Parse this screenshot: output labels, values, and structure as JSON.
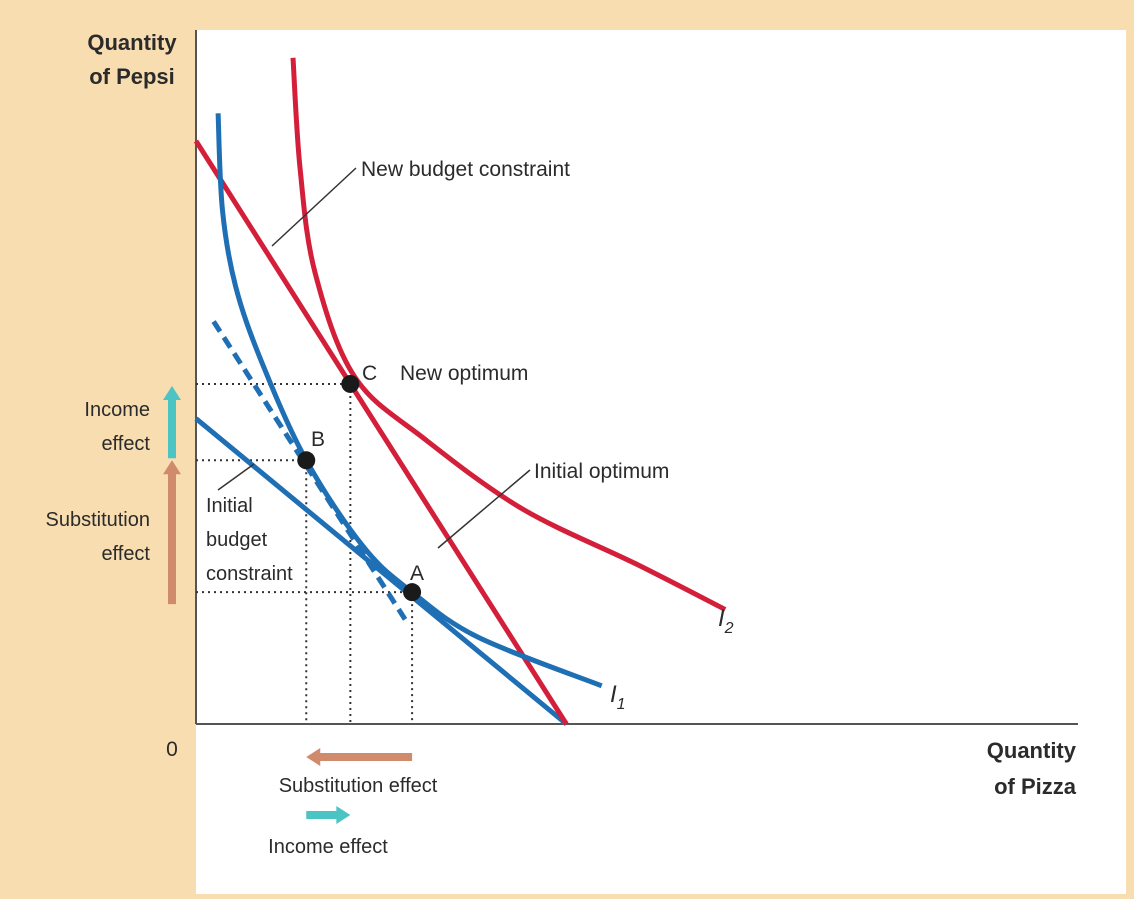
{
  "chart_data": {
    "type": "line",
    "ylabel_line1": "Quantity",
    "ylabel_line2": "of Pepsi",
    "xlabel_line1": "Quantity",
    "xlabel_line2": "of Pizza",
    "origin_label": "0",
    "xlim": [
      0,
      10
    ],
    "ylim": [
      0,
      10
    ],
    "series": [
      {
        "id": "initial_budget",
        "color": "#1f6fb5",
        "points": [
          [
            0,
            4.4
          ],
          [
            4.2,
            0
          ]
        ]
      },
      {
        "id": "new_budget",
        "color": "#d31f3a",
        "points": [
          [
            0,
            8.4
          ],
          [
            4.2,
            0
          ]
        ]
      },
      {
        "id": "compensated_budget",
        "color": "#1f6fb5",
        "dashed": true,
        "points": [
          [
            0.2,
            5.8
          ],
          [
            2.4,
            1.45
          ]
        ]
      },
      {
        "id": "I1",
        "name": "I",
        "subscript": "1",
        "color": "#1f6fb5",
        "points": [
          [
            0.25,
            8.8
          ],
          [
            0.3,
            7.4
          ],
          [
            0.45,
            6.3
          ],
          [
            0.75,
            5.2
          ],
          [
            1.25,
            3.8
          ],
          [
            1.9,
            2.55
          ],
          [
            2.45,
            1.9
          ],
          [
            3.2,
            1.25
          ],
          [
            4.6,
            0.55
          ]
        ]
      },
      {
        "id": "I2",
        "name": "I",
        "subscript": "2",
        "color": "#d31f3a",
        "points": [
          [
            1.1,
            9.6
          ],
          [
            1.18,
            8.0
          ],
          [
            1.35,
            6.5
          ],
          [
            1.8,
            5.0
          ],
          [
            2.6,
            4.1
          ],
          [
            3.7,
            3.1
          ],
          [
            5.0,
            2.3
          ],
          [
            6.0,
            1.65
          ]
        ]
      }
    ],
    "points": [
      {
        "id": "A",
        "label": "A",
        "x": 2.45,
        "y": 1.9
      },
      {
        "id": "B",
        "label": "B",
        "x": 1.25,
        "y": 3.8
      },
      {
        "id": "C",
        "label": "C",
        "x": 1.75,
        "y": 4.9
      }
    ],
    "annotations": {
      "new_budget": "New budget constraint",
      "new_optimum": "New optimum",
      "initial_optimum": "Initial optimum",
      "initial_budget_1": "Initial",
      "initial_budget_2": "budget",
      "initial_budget_3": "constraint",
      "income_effect_y_1": "Income",
      "income_effect_y_2": "effect",
      "substitution_effect_y_1": "Substitution",
      "substitution_effect_y_2": "effect",
      "substitution_effect_x": "Substitution effect",
      "income_effect_x": "Income effect"
    },
    "arrow_colors": {
      "substitution": "#d08a6c",
      "income": "#4cc4c4"
    }
  }
}
